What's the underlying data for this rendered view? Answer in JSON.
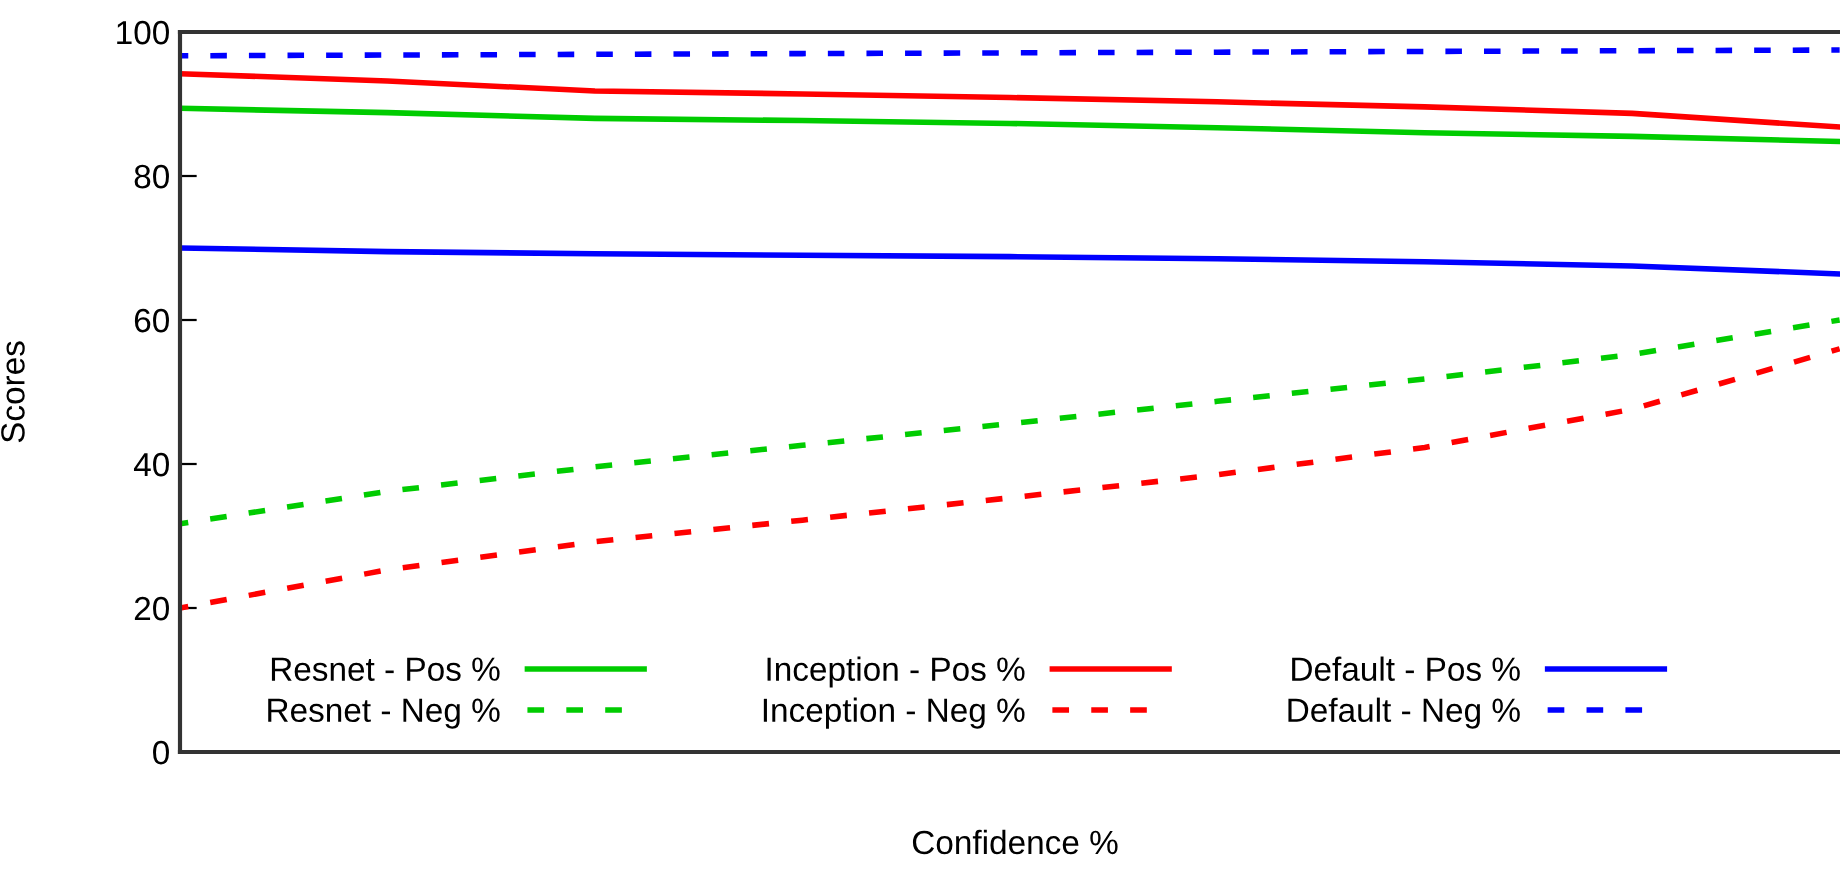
{
  "chart_data": {
    "type": "line",
    "xlabel": "Confidence %",
    "ylabel": "Scores",
    "categories": [
      null,
      null,
      null,
      null,
      null,
      null,
      null,
      null,
      null
    ],
    "ylim": [
      0,
      100
    ],
    "yticks": [
      0,
      20,
      40,
      60,
      80,
      100
    ],
    "grid": false,
    "legend": "bottom",
    "tick_labels": "y",
    "series": [
      {
        "name": "Resnet - Pos %",
        "color": "#00cc00",
        "line_style": "solid",
        "values": [
          89.4,
          88.8,
          88.0,
          87.7,
          87.3,
          86.7,
          86.0,
          85.5,
          84.8
        ]
      },
      {
        "name": "Resnet - Neg %",
        "color": "#00cc00",
        "line_style": "dashed",
        "values": [
          31.7,
          36.2,
          39.6,
          42.6,
          45.6,
          48.7,
          51.8,
          55.2,
          60.0
        ]
      },
      {
        "name": "Inception - Pos %",
        "color": "#ff0000",
        "line_style": "solid",
        "values": [
          94.2,
          93.2,
          91.8,
          91.4,
          90.9,
          90.3,
          89.6,
          88.7,
          86.8
        ]
      },
      {
        "name": "Inception - Neg %",
        "color": "#ff0000",
        "line_style": "dashed",
        "values": [
          20.0,
          25.3,
          29.2,
          32.2,
          35.3,
          38.5,
          42.3,
          47.6,
          56.0
        ]
      },
      {
        "name": "Default - Pos %",
        "color": "#0000ff",
        "line_style": "solid",
        "values": [
          70.0,
          69.5,
          69.2,
          69.0,
          68.8,
          68.5,
          68.1,
          67.5,
          66.4
        ]
      },
      {
        "name": "Default - Neg %",
        "color": "#0000ff",
        "line_style": "dashed",
        "values": [
          96.7,
          96.8,
          96.9,
          97.0,
          97.1,
          97.2,
          97.3,
          97.4,
          97.5
        ]
      }
    ]
  }
}
